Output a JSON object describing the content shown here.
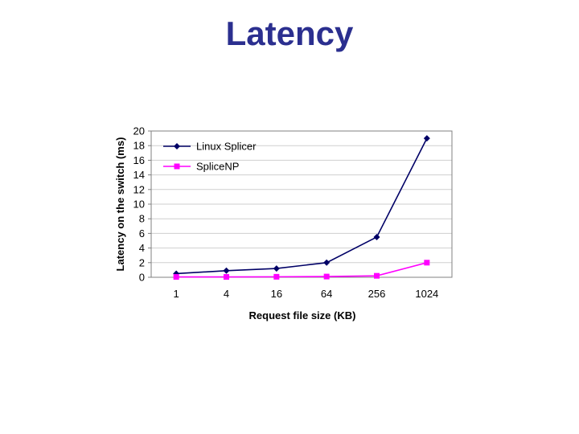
{
  "slide": {
    "title": "Latency"
  },
  "chart_data": {
    "type": "line",
    "title": "",
    "xlabel": "Request file size (KB)",
    "ylabel": "Latency on the switch (ms)",
    "categories": [
      "1",
      "4",
      "16",
      "64",
      "256",
      "1024"
    ],
    "ylim": [
      0,
      20
    ],
    "yticks": [
      0,
      2,
      4,
      6,
      8,
      10,
      12,
      14,
      16,
      18,
      20
    ],
    "grid": true,
    "legend": "top-left",
    "series": [
      {
        "name": "Linux Splicer",
        "color": "#000066",
        "marker": "diamond",
        "values": [
          0.5,
          0.9,
          1.2,
          2.0,
          5.5,
          19.0
        ]
      },
      {
        "name": "SpliceNP",
        "color": "#ff00ff",
        "marker": "square",
        "values": [
          0.05,
          0.05,
          0.07,
          0.1,
          0.2,
          2.0
        ]
      }
    ]
  }
}
